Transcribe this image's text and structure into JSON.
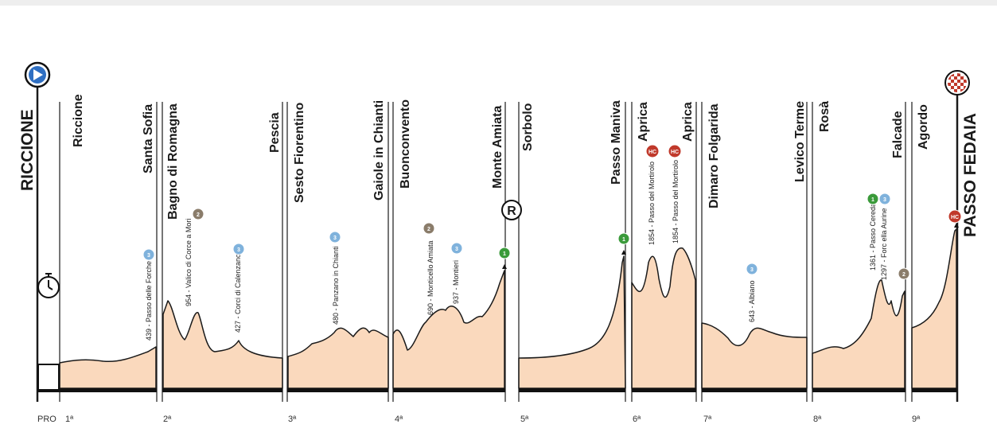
{
  "start_finish": {
    "start": "RICCIONE",
    "finish": "PASSO FEDAIA"
  },
  "stages": [
    "PRO",
    "1ª",
    "2ª",
    "3ª",
    "4ª",
    "5ª",
    "6ª",
    "7ª",
    "8ª",
    "9ª"
  ],
  "places": [
    "Riccione",
    "Santa Sofia",
    "Bagno di Romagna",
    "Pescia",
    "Sesto Fiorentino",
    "Gaiole in Chianti",
    "Buonconvento",
    "Monte Amiata",
    "Sorbolo",
    "Passo Maniva",
    "Aprica",
    "Aprica",
    "Dimaro Folgarida",
    "Levico Terme",
    "Rosà",
    "Falcade",
    "Agordo"
  ],
  "climbs": [
    {
      "label": "439 - Passo delle Forche",
      "category": "3",
      "color": "#7fb2dc"
    },
    {
      "label": "954 - Valico di Corce a Mori",
      "category": "2",
      "color": "#8a7c6a"
    },
    {
      "label": "427 - Corci di Calenzano",
      "category": "3",
      "color": "#7fb2dc"
    },
    {
      "label": "480 - Panzano in Chianti",
      "category": "3",
      "color": "#7fb2dc"
    },
    {
      "label": "690 - Monticello Amiata",
      "category": "2",
      "color": "#8a7c6a"
    },
    {
      "label": "937 - Montieri",
      "category": "3",
      "color": "#7fb2dc"
    },
    {
      "label": "1854 - Passo del Mortirolo",
      "category": "HC",
      "color": "#c0392b"
    },
    {
      "label": "1854 - Passo del Mortirolo",
      "category": "HC",
      "color": "#c0392b"
    },
    {
      "label": "643 - Albiano",
      "category": "3",
      "color": "#7fb2dc"
    },
    {
      "label": "1361 - Passo Cereda",
      "category": "1",
      "color": "#3a9a3a"
    },
    {
      "label": "1297 - Forc ella Aurine",
      "category": "3",
      "color": "#7fb2dc"
    }
  ],
  "summit_badges": [
    {
      "category": "1",
      "color": "#3a9a3a"
    },
    {
      "category": "1",
      "color": "#3a9a3a"
    },
    {
      "category": "2",
      "color": "#8a7c6a"
    },
    {
      "category": "HC",
      "color": "#c0392b"
    }
  ],
  "markers": {
    "rest_day": "R"
  },
  "colors": {
    "fill": "#fad9bd",
    "line": "#1a1a1a",
    "start_icon": "#2f6fc2",
    "finish_flag": "#c0392b"
  }
}
